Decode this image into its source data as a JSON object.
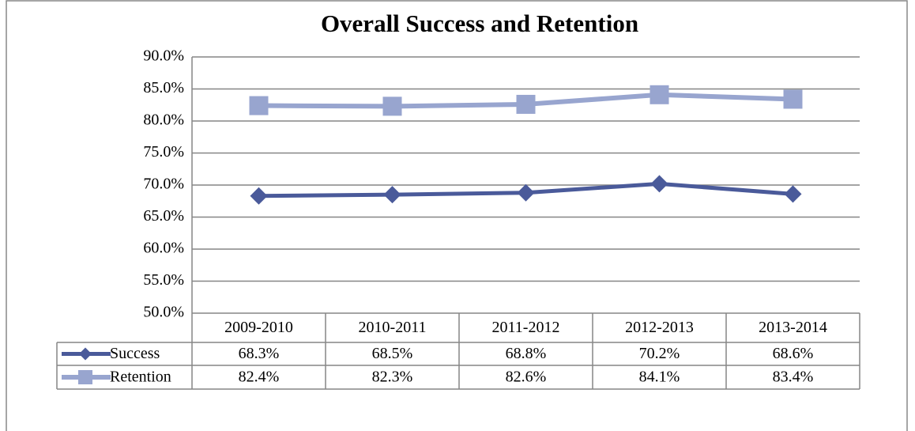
{
  "chart_data": {
    "type": "line",
    "title": "Overall Success and Retention",
    "categories": [
      "2009-2010",
      "2010-2011",
      "2011-2012",
      "2012-2013",
      "2013-2014"
    ],
    "series": [
      {
        "name": "Success",
        "color": "#4a5a9a",
        "marker": "diamond",
        "values": [
          68.3,
          68.5,
          68.8,
          70.2,
          68.6
        ],
        "value_labels": [
          "68.3%",
          "68.5%",
          "68.8%",
          "70.2%",
          "68.6%"
        ]
      },
      {
        "name": "Retention",
        "color": "#98a5cf",
        "marker": "square",
        "values": [
          82.4,
          82.3,
          82.6,
          84.1,
          83.4
        ],
        "value_labels": [
          "82.4%",
          "82.3%",
          "82.6%",
          "84.1%",
          "83.4%"
        ]
      }
    ],
    "ylim": [
      50,
      90
    ],
    "yticks": [
      {
        "value": 50,
        "label": "50.0%"
      },
      {
        "value": 55,
        "label": "55.0%"
      },
      {
        "value": 60,
        "label": "60.0%"
      },
      {
        "value": 65,
        "label": "65.0%"
      },
      {
        "value": 70,
        "label": "70.0%"
      },
      {
        "value": 75,
        "label": "75.0%"
      },
      {
        "value": 80,
        "label": "80.0%"
      },
      {
        "value": 85,
        "label": "85.0%"
      },
      {
        "value": 90,
        "label": "90.0%"
      }
    ],
    "grid": true
  }
}
